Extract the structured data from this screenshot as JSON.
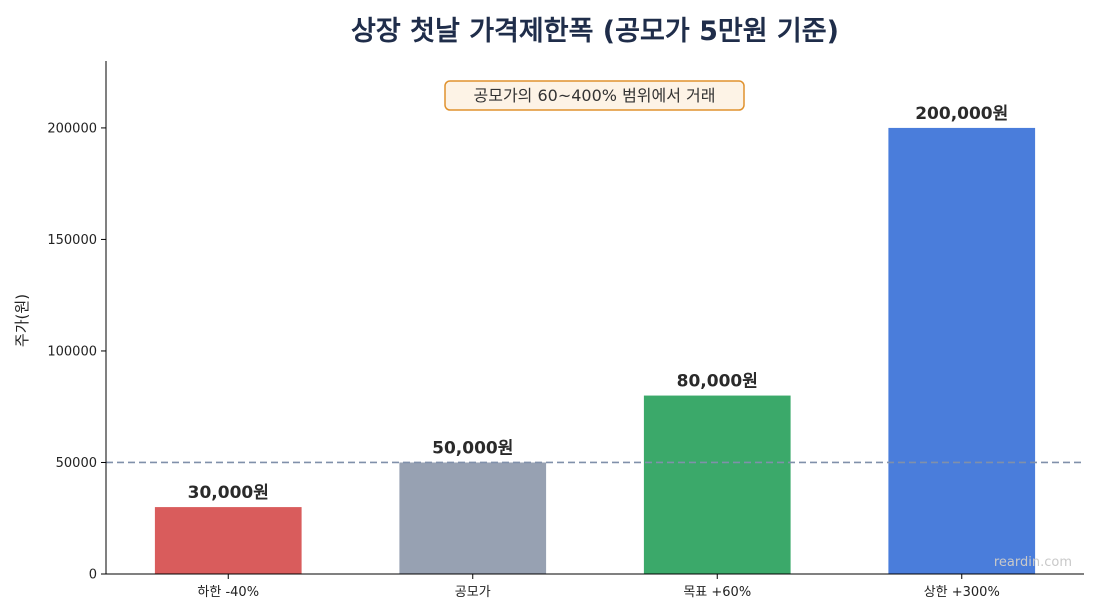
{
  "chart_data": {
    "type": "bar",
    "title": "상장 첫날 가격제한폭 (공모가 5만원 기준)",
    "xlabel": "",
    "ylabel": "주가(원)",
    "categories": [
      "하한 -40%",
      "공모가",
      "목표 +60%",
      "상한 +300%"
    ],
    "values": [
      30000,
      50000,
      80000,
      200000
    ],
    "value_labels": [
      "30,000원",
      "50,000원",
      "80,000원",
      "200,000원"
    ],
    "colors": [
      "#d95c5c",
      "#97a1b2",
      "#3ba96a",
      "#4a7ddb"
    ],
    "ylim": [
      0,
      230000
    ],
    "yticks": [
      0,
      50000,
      100000,
      150000,
      200000
    ],
    "reference_line": {
      "value": 50000,
      "style": "dashed",
      "color": "#8090aa"
    },
    "annotation": {
      "text": "공모가의 60~400% 범위에서 거래",
      "box_border": "#e0922e",
      "box_fill": "#fdf3e6"
    },
    "grid": false
  },
  "watermark": "reardin.com"
}
